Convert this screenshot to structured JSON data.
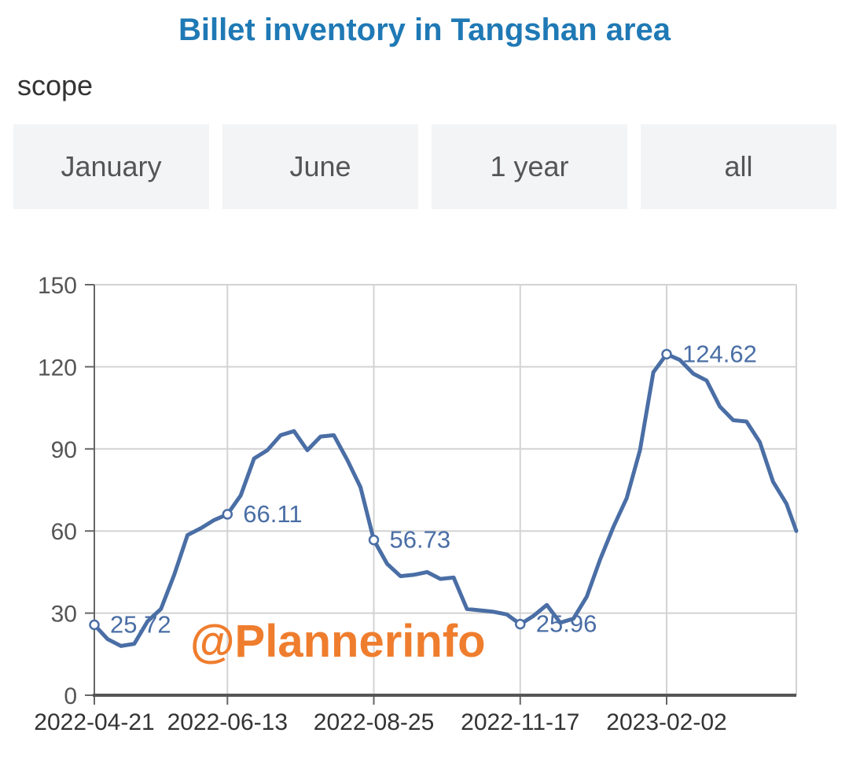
{
  "header": {
    "title": "Billet inventory in Tangshan area",
    "scope_label": "scope"
  },
  "range_buttons": [
    {
      "label": "January"
    },
    {
      "label": "June"
    },
    {
      "label": "1 year"
    },
    {
      "label": "all"
    }
  ],
  "watermark": "@Plannerinfo",
  "colors": {
    "title": "#1f79b5",
    "line": "#4a6ea5",
    "watermark": "#ef7d2e"
  },
  "chart_data": {
    "type": "line",
    "title": "",
    "xlabel": "",
    "ylabel": "",
    "ylim": [
      0,
      150
    ],
    "yticks": [
      0,
      30,
      60,
      90,
      120,
      150
    ],
    "xtick_labels": [
      "2022-04-21",
      "2022-06-13",
      "2022-08-25",
      "2022-11-17",
      "2023-02-02"
    ],
    "xtick_indices": [
      0,
      10,
      20,
      30,
      40
    ],
    "grid": true,
    "series": [
      {
        "values": [
          25.72,
          20.5,
          18.0,
          18.8,
          27,
          31.5,
          44,
          58.5,
          61,
          64,
          66.11,
          73,
          86.5,
          89.5,
          95,
          96.5,
          89.5,
          94.5,
          95,
          86,
          76,
          56.73,
          48,
          43.5,
          44,
          45,
          42.5,
          43,
          31.5,
          31,
          30.5,
          29.5,
          25.96,
          29,
          33,
          26.5,
          28,
          36,
          49.5,
          61.5,
          72,
          89.5,
          118,
          124.62,
          122.5,
          117.5,
          115,
          105.5,
          100.5,
          100,
          92.5,
          78,
          70,
          60
        ]
      }
    ],
    "point_index_for_ticks": [
      0,
      10,
      21,
      32,
      43
    ],
    "data_labels": [
      {
        "index": 0,
        "text": "25.72"
      },
      {
        "index": 10,
        "text": "66.11"
      },
      {
        "index": 21,
        "text": "56.73"
      },
      {
        "index": 32,
        "text": "25.96"
      },
      {
        "index": 43,
        "text": "124.62"
      }
    ]
  }
}
